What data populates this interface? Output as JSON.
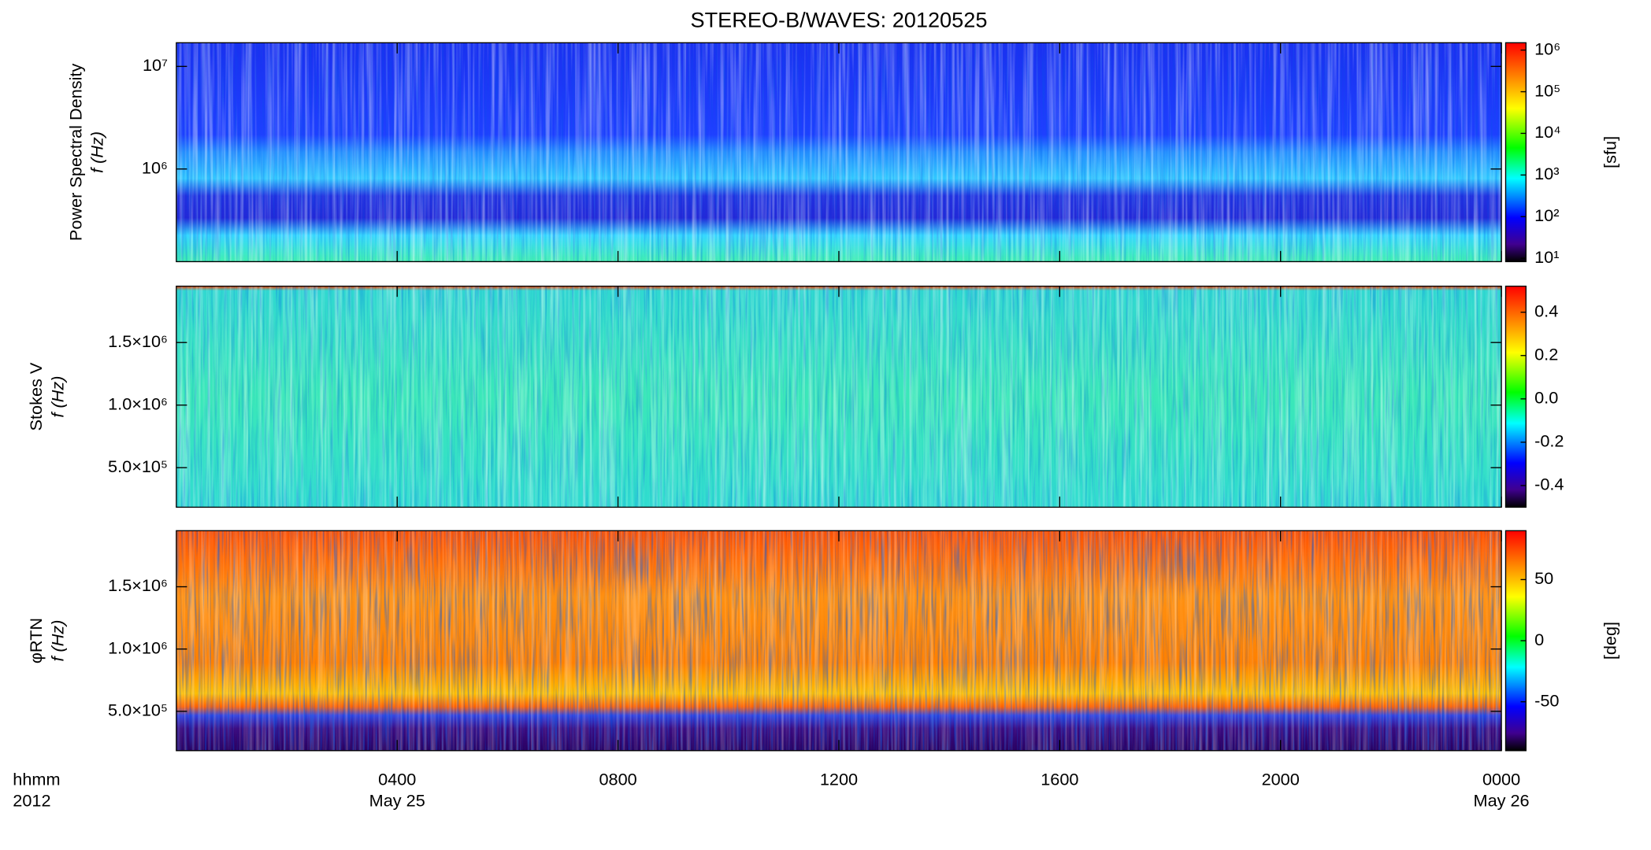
{
  "title": "STEREO-B/WAVES: 20120525",
  "chart_data": [
    {
      "type": "heatmap",
      "ylabel": [
        "Power Spectral Density",
        "f (Hz)"
      ],
      "yscale": "log",
      "ylim": [
        125000,
        17000000
      ],
      "yticks": [
        {
          "value": 1000000,
          "label": "10⁶"
        },
        {
          "value": 10000000,
          "label": "10⁷"
        }
      ],
      "colormap": "rainbow",
      "colorbar": {
        "label": "[sfu]",
        "scale": "log",
        "clim": [
          8.3,
          1500000
        ],
        "ticks": [
          {
            "value": 10,
            "label": "10¹"
          },
          {
            "value": 100,
            "label": "10²"
          },
          {
            "value": 1000,
            "label": "10³"
          },
          {
            "value": 10000,
            "label": "10⁴"
          },
          {
            "value": 100000,
            "label": "10⁵"
          },
          {
            "value": 1000000,
            "label": "10⁶"
          }
        ]
      },
      "xlim": [
        0,
        24
      ]
    },
    {
      "type": "heatmap",
      "ylabel": [
        "Stokes V",
        "f (Hz)"
      ],
      "yscale": "linear",
      "ylim": [
        184000,
        1950000
      ],
      "yticks": [
        {
          "value": 500000,
          "label": "5.0×10⁵"
        },
        {
          "value": 1000000,
          "label": "1.0×10⁶"
        },
        {
          "value": 1500000,
          "label": "1.5×10⁶"
        }
      ],
      "colormap": "rainbow",
      "colorbar": {
        "label": null,
        "scale": "linear",
        "clim": [
          -0.5,
          0.52
        ],
        "ticks": [
          -0.4,
          -0.2,
          {
            "value": 0,
            "label": "0.0"
          },
          0.2,
          0.4
        ]
      },
      "xlim": [
        0,
        24
      ]
    },
    {
      "type": "heatmap",
      "ylabel": [
        "φRTN",
        "f (Hz)"
      ],
      "yscale": "linear",
      "ylim": [
        184000,
        1950000
      ],
      "yticks": [
        {
          "value": 500000,
          "label": "5.0×10⁵"
        },
        {
          "value": 1000000,
          "label": "1.0×10⁶"
        },
        {
          "value": 1500000,
          "label": "1.5×10⁶"
        }
      ],
      "colormap": "rainbow",
      "colorbar": {
        "label": "[deg]",
        "scale": "linear",
        "clim": [
          -90,
          90
        ],
        "ticks": [
          -50,
          0,
          50
        ]
      },
      "xlim": [
        0,
        24
      ],
      "xlabel": [
        "hhmm",
        "2012"
      ],
      "xticks": [
        {
          "value": 4,
          "label": "0400"
        },
        {
          "value": 8,
          "label": "0800"
        },
        {
          "value": 12,
          "label": "1200"
        },
        {
          "value": 16,
          "label": "1600"
        },
        {
          "value": 20,
          "label": "2000"
        },
        {
          "value": 24,
          "label": "0000"
        }
      ],
      "date_labels": [
        {
          "value": 4,
          "label": "May 25"
        },
        {
          "value": 24,
          "label": "May 26"
        }
      ]
    }
  ]
}
